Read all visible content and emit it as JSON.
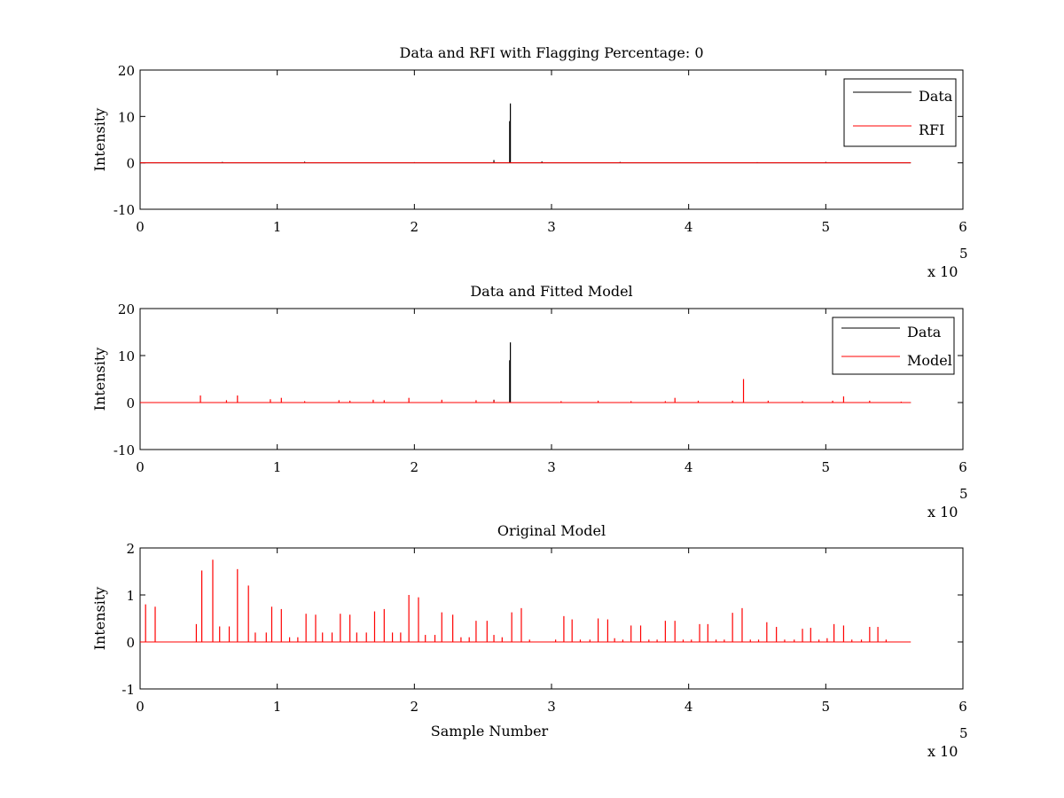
{
  "colors": {
    "data": "#000000",
    "rfi": "#ff0000",
    "model": "#ff0000",
    "axes": "#000000",
    "background": "#ffffff"
  },
  "chart_data": [
    {
      "type": "line",
      "title": "Data and RFI with Flagging Percentage: 0",
      "xlabel": "",
      "ylabel": "Intensity",
      "xlim": [
        0,
        600000
      ],
      "ylim": [
        -10,
        20
      ],
      "xticks": [
        0,
        1,
        2,
        3,
        4,
        5,
        6
      ],
      "xtick_labels": [
        "0",
        "1",
        "2",
        "3",
        "4",
        "5",
        "6"
      ],
      "yticks": [
        -10,
        0,
        10,
        20
      ],
      "ytick_labels": [
        "-10",
        "0",
        "10",
        "20"
      ],
      "x_multiplier": {
        "base": "x 10",
        "exponent": "5"
      },
      "grid": false,
      "legend": {
        "position": "top-right",
        "entries": [
          "Data",
          "RFI"
        ]
      },
      "data_extent": [
        0,
        562000
      ],
      "series": [
        {
          "name": "Data",
          "color": "#000000",
          "baseline": 0,
          "spikes": [
            [
              270000,
              12.8
            ],
            [
              269500,
              9.0
            ],
            [
              258000,
              0.6
            ],
            [
              293000,
              0.3
            ],
            [
              120000,
              0.25
            ],
            [
              60000,
              0.2
            ],
            [
              350000,
              0.2
            ],
            [
              500000,
              0.2
            ],
            [
              200000,
              0.15
            ],
            [
              450000,
              0.15
            ]
          ]
        },
        {
          "name": "RFI",
          "color": "#ff0000",
          "baseline": 0,
          "spikes": []
        }
      ]
    },
    {
      "type": "line",
      "title": "Data and Fitted Model",
      "xlabel": "",
      "ylabel": "Intensity",
      "xlim": [
        0,
        600000
      ],
      "ylim": [
        -10,
        20
      ],
      "xticks": [
        0,
        1,
        2,
        3,
        4,
        5,
        6
      ],
      "xtick_labels": [
        "0",
        "1",
        "2",
        "3",
        "4",
        "5",
        "6"
      ],
      "yticks": [
        -10,
        0,
        10,
        20
      ],
      "ytick_labels": [
        "-10",
        "0",
        "10",
        "20"
      ],
      "x_multiplier": {
        "base": "x 10",
        "exponent": "5"
      },
      "grid": false,
      "legend": {
        "position": "top-right",
        "entries": [
          "Data",
          "Model"
        ]
      },
      "data_extent": [
        0,
        562000
      ],
      "series": [
        {
          "name": "Data",
          "color": "#000000",
          "baseline": 0,
          "spikes": [
            [
              270000,
              12.8
            ],
            [
              269500,
              9.0
            ],
            [
              258000,
              0.6
            ]
          ]
        },
        {
          "name": "Model",
          "color": "#ff0000",
          "baseline": 0,
          "spikes": [
            [
              44000,
              1.5
            ],
            [
              71000,
              1.5
            ],
            [
              63000,
              0.5
            ],
            [
              95000,
              0.7
            ],
            [
              103000,
              1.0
            ],
            [
              120000,
              0.3
            ],
            [
              145000,
              0.5
            ],
            [
              153000,
              0.4
            ],
            [
              170000,
              0.6
            ],
            [
              178000,
              0.5
            ],
            [
              196000,
              1.0
            ],
            [
              220000,
              0.6
            ],
            [
              245000,
              0.5
            ],
            [
              258000,
              0.5
            ],
            [
              307000,
              0.3
            ],
            [
              334000,
              0.4
            ],
            [
              358000,
              0.3
            ],
            [
              383000,
              0.3
            ],
            [
              390000,
              1.0
            ],
            [
              407000,
              0.4
            ],
            [
              432000,
              0.4
            ],
            [
              440000,
              5.0
            ],
            [
              458000,
              0.4
            ],
            [
              483000,
              0.3
            ],
            [
              505000,
              0.4
            ],
            [
              513000,
              1.3
            ],
            [
              532000,
              0.4
            ],
            [
              555000,
              0.2
            ]
          ]
        }
      ]
    },
    {
      "type": "line",
      "title": "Original Model",
      "xlabel": "Sample Number",
      "ylabel": "Intensity",
      "xlim": [
        0,
        600000
      ],
      "ylim": [
        -1,
        2
      ],
      "xticks": [
        0,
        1,
        2,
        3,
        4,
        5,
        6
      ],
      "xtick_labels": [
        "0",
        "1",
        "2",
        "3",
        "4",
        "5",
        "6"
      ],
      "yticks": [
        -1,
        0,
        1,
        2
      ],
      "ytick_labels": [
        "-1",
        "0",
        "1",
        "2"
      ],
      "x_multiplier": {
        "base": "x 10",
        "exponent": "5"
      },
      "grid": false,
      "legend": null,
      "data_extent": [
        0,
        562000
      ],
      "series": [
        {
          "name": "",
          "color": "#ff0000",
          "baseline": 0,
          "spikes": [
            [
              4000,
              0.8
            ],
            [
              11000,
              0.75
            ],
            [
              41000,
              0.38
            ],
            [
              45000,
              1.52
            ],
            [
              53000,
              1.75
            ],
            [
              58000,
              0.33
            ],
            [
              65000,
              0.33
            ],
            [
              71000,
              1.55
            ],
            [
              79000,
              1.2
            ],
            [
              84000,
              0.2
            ],
            [
              92000,
              0.2
            ],
            [
              96000,
              0.75
            ],
            [
              103000,
              0.7
            ],
            [
              109000,
              0.1
            ],
            [
              115000,
              0.1
            ],
            [
              121000,
              0.6
            ],
            [
              128000,
              0.58
            ],
            [
              133000,
              0.2
            ],
            [
              140000,
              0.2
            ],
            [
              146000,
              0.6
            ],
            [
              153000,
              0.58
            ],
            [
              158000,
              0.2
            ],
            [
              165000,
              0.2
            ],
            [
              171000,
              0.65
            ],
            [
              178000,
              0.7
            ],
            [
              184000,
              0.2
            ],
            [
              190000,
              0.2
            ],
            [
              196000,
              1.0
            ],
            [
              203000,
              0.95
            ],
            [
              208000,
              0.15
            ],
            [
              215000,
              0.15
            ],
            [
              220000,
              0.63
            ],
            [
              228000,
              0.58
            ],
            [
              234000,
              0.1
            ],
            [
              240000,
              0.1
            ],
            [
              245000,
              0.45
            ],
            [
              253000,
              0.45
            ],
            [
              258000,
              0.15
            ],
            [
              264000,
              0.1
            ],
            [
              271000,
              0.63
            ],
            [
              278000,
              0.72
            ],
            [
              284000,
              0.05
            ],
            [
              303000,
              0.05
            ],
            [
              309000,
              0.55
            ],
            [
              315000,
              0.48
            ],
            [
              321000,
              0.05
            ],
            [
              328000,
              0.05
            ],
            [
              334000,
              0.5
            ],
            [
              341000,
              0.48
            ],
            [
              346000,
              0.08
            ],
            [
              352000,
              0.05
            ],
            [
              358000,
              0.35
            ],
            [
              365000,
              0.35
            ],
            [
              371000,
              0.05
            ],
            [
              377000,
              0.05
            ],
            [
              383000,
              0.45
            ],
            [
              390000,
              0.45
            ],
            [
              396000,
              0.05
            ],
            [
              402000,
              0.05
            ],
            [
              408000,
              0.38
            ],
            [
              414000,
              0.38
            ],
            [
              420000,
              0.05
            ],
            [
              426000,
              0.05
            ],
            [
              432000,
              0.62
            ],
            [
              439000,
              0.72
            ],
            [
              445000,
              0.05
            ],
            [
              451000,
              0.05
            ],
            [
              457000,
              0.42
            ],
            [
              464000,
              0.32
            ],
            [
              470000,
              0.05
            ],
            [
              477000,
              0.05
            ],
            [
              483000,
              0.28
            ],
            [
              489000,
              0.3
            ],
            [
              495000,
              0.05
            ],
            [
              501000,
              0.08
            ],
            [
              506000,
              0.38
            ],
            [
              513000,
              0.35
            ],
            [
              519000,
              0.05
            ],
            [
              526000,
              0.05
            ],
            [
              532000,
              0.32
            ],
            [
              538000,
              0.32
            ],
            [
              544000,
              0.05
            ]
          ]
        }
      ]
    }
  ]
}
